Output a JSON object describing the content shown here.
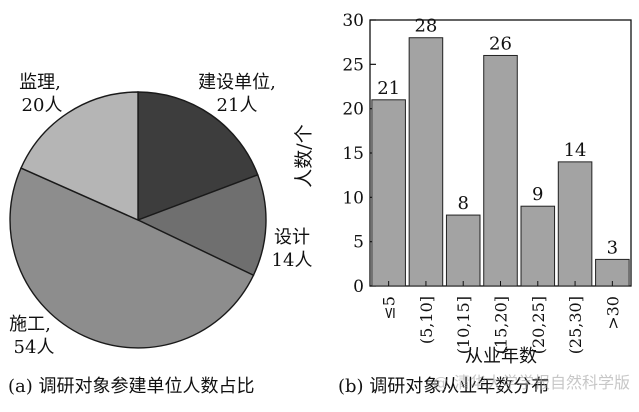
{
  "chart_data": [
    {
      "type": "pie",
      "caption": "(a) 调研对象参建单位人数占比",
      "slices": [
        {
          "name": "建设单位,",
          "value_label": "21人",
          "value": 21,
          "color": "#3d3d3d"
        },
        {
          "name": "设计",
          "value_label": "14人",
          "value": 14,
          "color": "#6f6f6f"
        },
        {
          "name": "施工,",
          "value_label": "54人",
          "value": 54,
          "color": "#8d8d8d"
        },
        {
          "name": "监理,",
          "value_label": "20人",
          "value": 20,
          "color": "#b5b5b5"
        }
      ]
    },
    {
      "type": "bar",
      "caption": "(b) 调研对象从业年数分布",
      "categories": [
        "≤5",
        "(5,10]",
        "(10,15]",
        "(15,20]",
        "(20,25]",
        "(25,30]",
        ">30"
      ],
      "values": [
        21,
        28,
        8,
        26,
        9,
        14,
        3
      ],
      "xlabel": "从业年数",
      "ylabel": "人数/个",
      "ylim": [
        0,
        30
      ],
      "yticks": [
        0,
        5,
        10,
        15,
        20,
        25,
        30
      ],
      "bar_color": "#a3a3a3"
    }
  ],
  "watermark": "@ 清华大学学报自然科学版"
}
